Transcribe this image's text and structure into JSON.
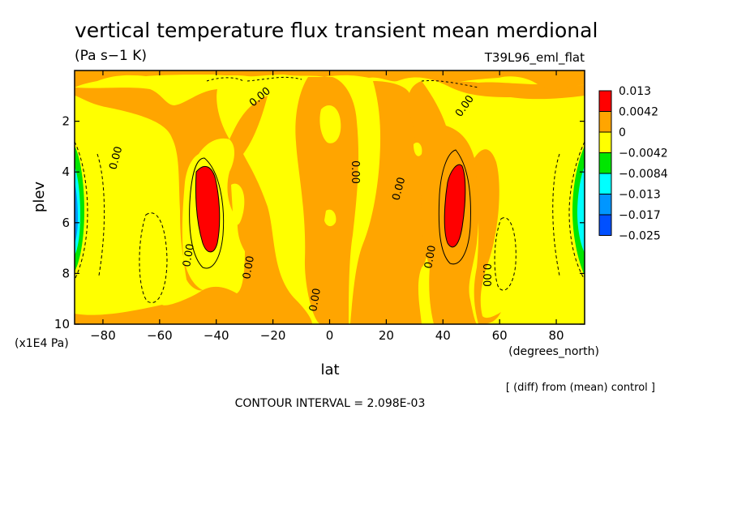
{
  "chart_data": {
    "type": "contour",
    "title": "vertical temperature flux transient mean merdional",
    "units": "(Pa s−1 K)",
    "experiment": "T39L96_eml_flat",
    "xlabel": "lat",
    "x_units": "(degrees_north)",
    "ylabel": "plev",
    "y_units": "(x1E4 Pa)",
    "xlim": [
      -90,
      90
    ],
    "ylim": [
      10,
      0
    ],
    "x_ticks": [
      -80,
      -60,
      -40,
      -20,
      0,
      20,
      40,
      60,
      80
    ],
    "x_tick_labels": [
      "−80",
      "−60",
      "−40",
      "−20",
      "0",
      "20",
      "40",
      "60",
      "80"
    ],
    "y_ticks": [
      2,
      4,
      6,
      8,
      10
    ],
    "y_tick_labels": [
      "2",
      "4",
      "6",
      "8",
      "10"
    ],
    "note": "[ (diff) from (mean) control ]",
    "contour_interval": "CONTOUR INTERVAL = 2.098E-03",
    "contour_labels": [
      "0.00",
      "0.00",
      "0.00",
      "0.00",
      "0.00",
      "0.00",
      "0.00",
      "0.00",
      "0.00",
      "0.00",
      "0.00",
      "0.00"
    ],
    "colorbar": {
      "colors": [
        "#ff0000",
        "#ffa500",
        "#ffff00",
        "#00e600",
        "#00ffff",
        "#0096ff",
        "#0050ff"
      ],
      "labels": [
        "0.013",
        "0.0042",
        "0",
        "−0.0042",
        "−0.0084",
        "−0.013",
        "−0.017",
        "−0.025"
      ]
    }
  }
}
